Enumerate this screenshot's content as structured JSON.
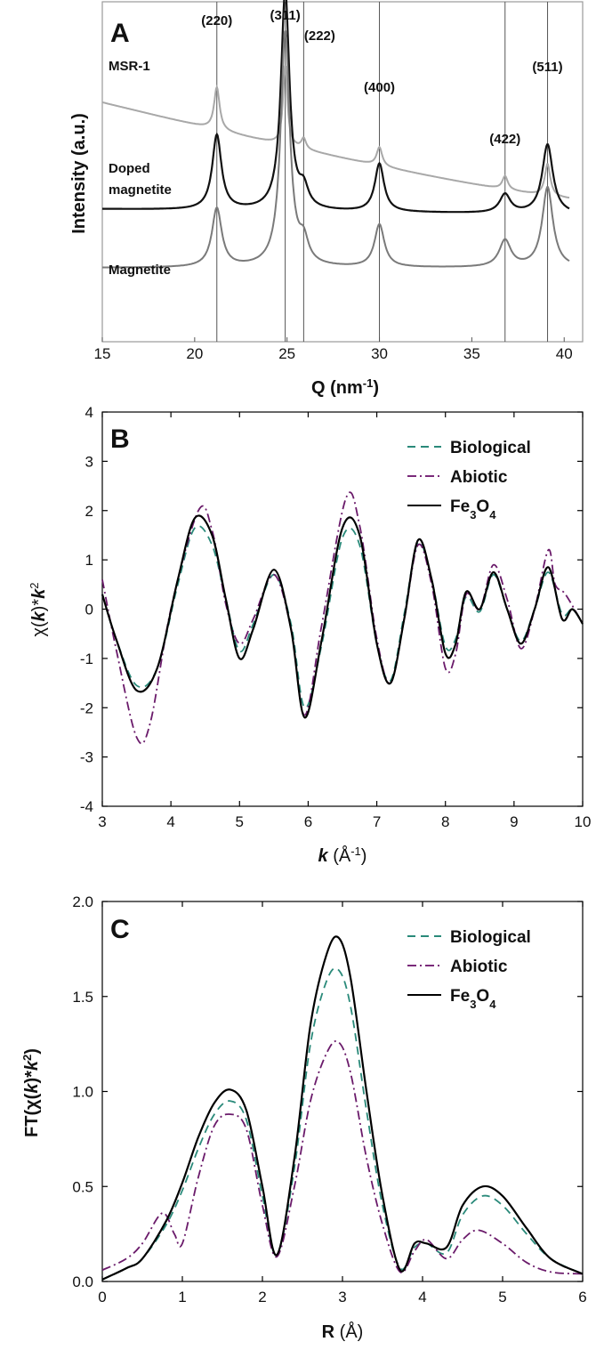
{
  "chart_data": [
    {
      "panel": "A",
      "type": "line",
      "xlabel_main": "Q (nm",
      "xlabel_sup": "-1",
      "xlabel_close": ")",
      "ylabel": "Intensity (a.u.)",
      "xlim": [
        15,
        41
      ],
      "xticks": [
        "15",
        "20",
        "25",
        "30",
        "35",
        "40"
      ],
      "grid": false,
      "reflections": [
        {
          "label": "(220)",
          "q": 21.2
        },
        {
          "label": "(311)",
          "q": 24.9
        },
        {
          "label": "(222)",
          "q": 25.9
        },
        {
          "label": "(400)",
          "q": 30.0
        },
        {
          "label": "(422)",
          "q": 36.8
        },
        {
          "label": "(511)",
          "q": 39.1
        }
      ],
      "series": [
        {
          "name": "MSR-1",
          "color": "#a8a8a8",
          "baseline_start": 0.8,
          "baseline_end": 0.44,
          "peaks": [
            [
              21.2,
              0.16,
              0.18
            ],
            [
              24.9,
              0.3,
              0.14
            ],
            [
              25.9,
              0.04,
              0.15
            ],
            [
              30.0,
              0.07,
              0.18
            ],
            [
              36.8,
              0.05,
              0.18
            ],
            [
              39.1,
              0.12,
              0.18
            ]
          ]
        },
        {
          "name": "Doped magnetite",
          "name_lines": [
            "Doped",
            "magnetite"
          ],
          "color": "#111111",
          "baseline_start": 0.4,
          "baseline_end": 0.38,
          "peaks": [
            [
              21.2,
              0.28,
              0.3
            ],
            [
              24.9,
              0.82,
              0.28
            ],
            [
              25.9,
              0.07,
              0.3
            ],
            [
              30.0,
              0.18,
              0.3
            ],
            [
              36.8,
              0.07,
              0.35
            ],
            [
              39.1,
              0.26,
              0.35
            ]
          ]
        },
        {
          "name": "Magnetite",
          "color": "#7a7a7a",
          "baseline_start": 0.18,
          "baseline_end": 0.18,
          "peaks": [
            [
              21.2,
              0.22,
              0.32
            ],
            [
              24.9,
              0.88,
              0.3
            ],
            [
              25.9,
              0.08,
              0.3
            ],
            [
              30.0,
              0.16,
              0.32
            ],
            [
              36.8,
              0.1,
              0.38
            ],
            [
              39.1,
              0.3,
              0.35
            ]
          ]
        }
      ]
    },
    {
      "panel": "B",
      "type": "line",
      "xlabel_main": "k",
      "xlabel_unit_open": " (Å",
      "xlabel_sup": "-1",
      "xlabel_close": ")",
      "ylabel_left": "χ(",
      "ylabel_k1": "k",
      "ylabel_mid": ")*",
      "ylabel_k2": "k",
      "ylabel_sup": "2",
      "xlim": [
        3,
        10
      ],
      "ylim": [
        -4,
        4
      ],
      "xticks": [
        "3",
        "4",
        "5",
        "6",
        "7",
        "8",
        "9",
        "10"
      ],
      "yticks": [
        "-4",
        "-3",
        "-2",
        "-1",
        "0",
        "1",
        "2",
        "3",
        "4"
      ],
      "grid": false,
      "legend_position": "top-right",
      "legend": [
        {
          "label": "Biological",
          "style": "dashed",
          "color": "#2a8a7a"
        },
        {
          "label": "Abiotic",
          "style": "dashdot",
          "color": "#7a2a7a"
        },
        {
          "label": "Fe",
          "sub": "3",
          "label_mid": "O",
          "sub2": "4",
          "style": "solid",
          "color": "#000000"
        }
      ],
      "series": [
        {
          "name": "Biological",
          "color": "#2a8a7a",
          "dash": "9,6",
          "x": [
            3.0,
            3.2,
            3.5,
            3.8,
            4.1,
            4.35,
            4.6,
            4.8,
            5.0,
            5.2,
            5.5,
            5.75,
            5.95,
            6.2,
            6.5,
            6.75,
            7.0,
            7.2,
            7.4,
            7.6,
            7.8,
            8.0,
            8.15,
            8.3,
            8.5,
            8.7,
            8.9,
            9.1,
            9.3,
            9.5,
            9.7,
            9.85,
            10.0
          ],
          "y": [
            0.3,
            -0.6,
            -1.55,
            -1.2,
            0.5,
            1.65,
            1.3,
            0.2,
            -0.85,
            -0.3,
            0.7,
            -0.3,
            -2.0,
            -0.7,
            1.45,
            1.3,
            -0.7,
            -1.45,
            -0.1,
            1.35,
            0.6,
            -0.75,
            -0.6,
            0.25,
            -0.05,
            0.7,
            0.0,
            -0.65,
            0.0,
            0.75,
            -0.1,
            0.0,
            -0.3
          ]
        },
        {
          "name": "Abiotic",
          "color": "#6a1a6a",
          "dash": "10,4,2,4",
          "x": [
            3.0,
            3.2,
            3.5,
            3.7,
            4.0,
            4.4,
            4.6,
            4.8,
            5.0,
            5.2,
            5.5,
            5.75,
            5.95,
            6.2,
            6.55,
            6.75,
            7.0,
            7.2,
            7.4,
            7.6,
            7.8,
            8.0,
            8.15,
            8.3,
            8.5,
            8.7,
            8.9,
            9.1,
            9.3,
            9.5,
            9.6,
            9.75,
            10.0
          ],
          "y": [
            0.6,
            -0.8,
            -2.6,
            -2.3,
            0.0,
            2.0,
            1.6,
            0.1,
            -0.7,
            -0.2,
            0.7,
            -0.4,
            -2.15,
            -0.3,
            2.25,
            1.7,
            -0.6,
            -1.5,
            -0.2,
            1.3,
            0.5,
            -1.2,
            -0.9,
            0.3,
            0.0,
            0.9,
            0.2,
            -0.8,
            0.0,
            1.2,
            0.5,
            0.3,
            -0.3
          ]
        },
        {
          "name": "Fe3O4",
          "color": "#000000",
          "dash": "",
          "x": [
            3.0,
            3.2,
            3.5,
            3.8,
            4.1,
            4.35,
            4.6,
            4.8,
            5.0,
            5.2,
            5.5,
            5.75,
            5.95,
            6.2,
            6.5,
            6.75,
            7.0,
            7.2,
            7.4,
            7.6,
            7.8,
            8.0,
            8.15,
            8.3,
            8.5,
            8.7,
            8.9,
            9.1,
            9.3,
            9.5,
            9.7,
            9.85,
            10.0
          ],
          "y": [
            0.3,
            -0.6,
            -1.65,
            -1.2,
            0.6,
            1.85,
            1.5,
            0.2,
            -1.0,
            -0.4,
            0.8,
            -0.4,
            -2.2,
            -0.6,
            1.65,
            1.5,
            -0.7,
            -1.5,
            -0.2,
            1.4,
            0.6,
            -0.9,
            -0.7,
            0.35,
            0.0,
            0.75,
            0.0,
            -0.7,
            0.0,
            0.85,
            -0.2,
            0.0,
            -0.3
          ]
        }
      ]
    },
    {
      "panel": "C",
      "type": "line",
      "xlabel_main": "R",
      "xlabel_unit": " (Å)",
      "ylabel_left": "FT(χ(",
      "ylabel_k1": "k",
      "ylabel_mid": ")*",
      "ylabel_k2": "k",
      "ylabel_sup": "2",
      "ylabel_close": ")",
      "xlim": [
        0,
        6
      ],
      "ylim": [
        0,
        2
      ],
      "xticks": [
        "0",
        "1",
        "2",
        "3",
        "4",
        "5",
        "6"
      ],
      "yticks": [
        "0.0",
        "0.5",
        "1.0",
        "1.5",
        "2.0"
      ],
      "grid": false,
      "legend_position": "top-right",
      "legend": [
        {
          "label": "Biological",
          "style": "dashed",
          "color": "#2a8a7a"
        },
        {
          "label": "Abiotic",
          "style": "dashdot",
          "color": "#7a2a7a"
        },
        {
          "label": "Fe",
          "sub": "3",
          "label_mid": "O",
          "sub2": "4",
          "style": "solid",
          "color": "#000000"
        }
      ],
      "series": [
        {
          "name": "Biological",
          "color": "#2a8a7a",
          "dash": "9,6",
          "x": [
            0,
            0.3,
            0.5,
            0.8,
            1.0,
            1.2,
            1.4,
            1.6,
            1.8,
            2.0,
            2.18,
            2.4,
            2.6,
            2.8,
            2.95,
            3.1,
            3.3,
            3.5,
            3.72,
            3.9,
            4.05,
            4.3,
            4.5,
            4.75,
            5.0,
            5.3,
            5.6,
            6.0
          ],
          "y": [
            0.01,
            0.07,
            0.12,
            0.3,
            0.48,
            0.7,
            0.88,
            0.95,
            0.85,
            0.45,
            0.14,
            0.6,
            1.25,
            1.58,
            1.64,
            1.45,
            0.9,
            0.4,
            0.07,
            0.18,
            0.2,
            0.15,
            0.35,
            0.45,
            0.4,
            0.25,
            0.12,
            0.04
          ]
        },
        {
          "name": "Abiotic",
          "color": "#6a1a6a",
          "dash": "10,4,2,4",
          "x": [
            0,
            0.3,
            0.5,
            0.75,
            0.9,
            1.0,
            1.2,
            1.4,
            1.6,
            1.8,
            2.0,
            2.18,
            2.4,
            2.6,
            2.8,
            2.95,
            3.1,
            3.3,
            3.5,
            3.72,
            3.9,
            4.05,
            4.3,
            4.5,
            4.7,
            5.0,
            5.3,
            5.6,
            6.0
          ],
          "y": [
            0.06,
            0.12,
            0.2,
            0.36,
            0.25,
            0.2,
            0.55,
            0.82,
            0.88,
            0.8,
            0.4,
            0.13,
            0.5,
            0.95,
            1.2,
            1.26,
            1.1,
            0.65,
            0.3,
            0.05,
            0.16,
            0.22,
            0.12,
            0.22,
            0.27,
            0.2,
            0.1,
            0.05,
            0.04
          ]
        },
        {
          "name": "Fe3O4",
          "color": "#000000",
          "dash": "",
          "x": [
            0,
            0.3,
            0.5,
            0.8,
            1.0,
            1.2,
            1.4,
            1.6,
            1.8,
            2.0,
            2.18,
            2.4,
            2.6,
            2.8,
            2.95,
            3.1,
            3.3,
            3.5,
            3.72,
            3.9,
            4.05,
            4.3,
            4.5,
            4.75,
            5.0,
            5.3,
            5.6,
            6.0
          ],
          "y": [
            0.01,
            0.07,
            0.12,
            0.32,
            0.52,
            0.76,
            0.94,
            1.01,
            0.9,
            0.5,
            0.14,
            0.65,
            1.35,
            1.72,
            1.81,
            1.6,
            1.0,
            0.45,
            0.06,
            0.2,
            0.2,
            0.18,
            0.4,
            0.5,
            0.45,
            0.28,
            0.12,
            0.04
          ]
        }
      ]
    }
  ]
}
